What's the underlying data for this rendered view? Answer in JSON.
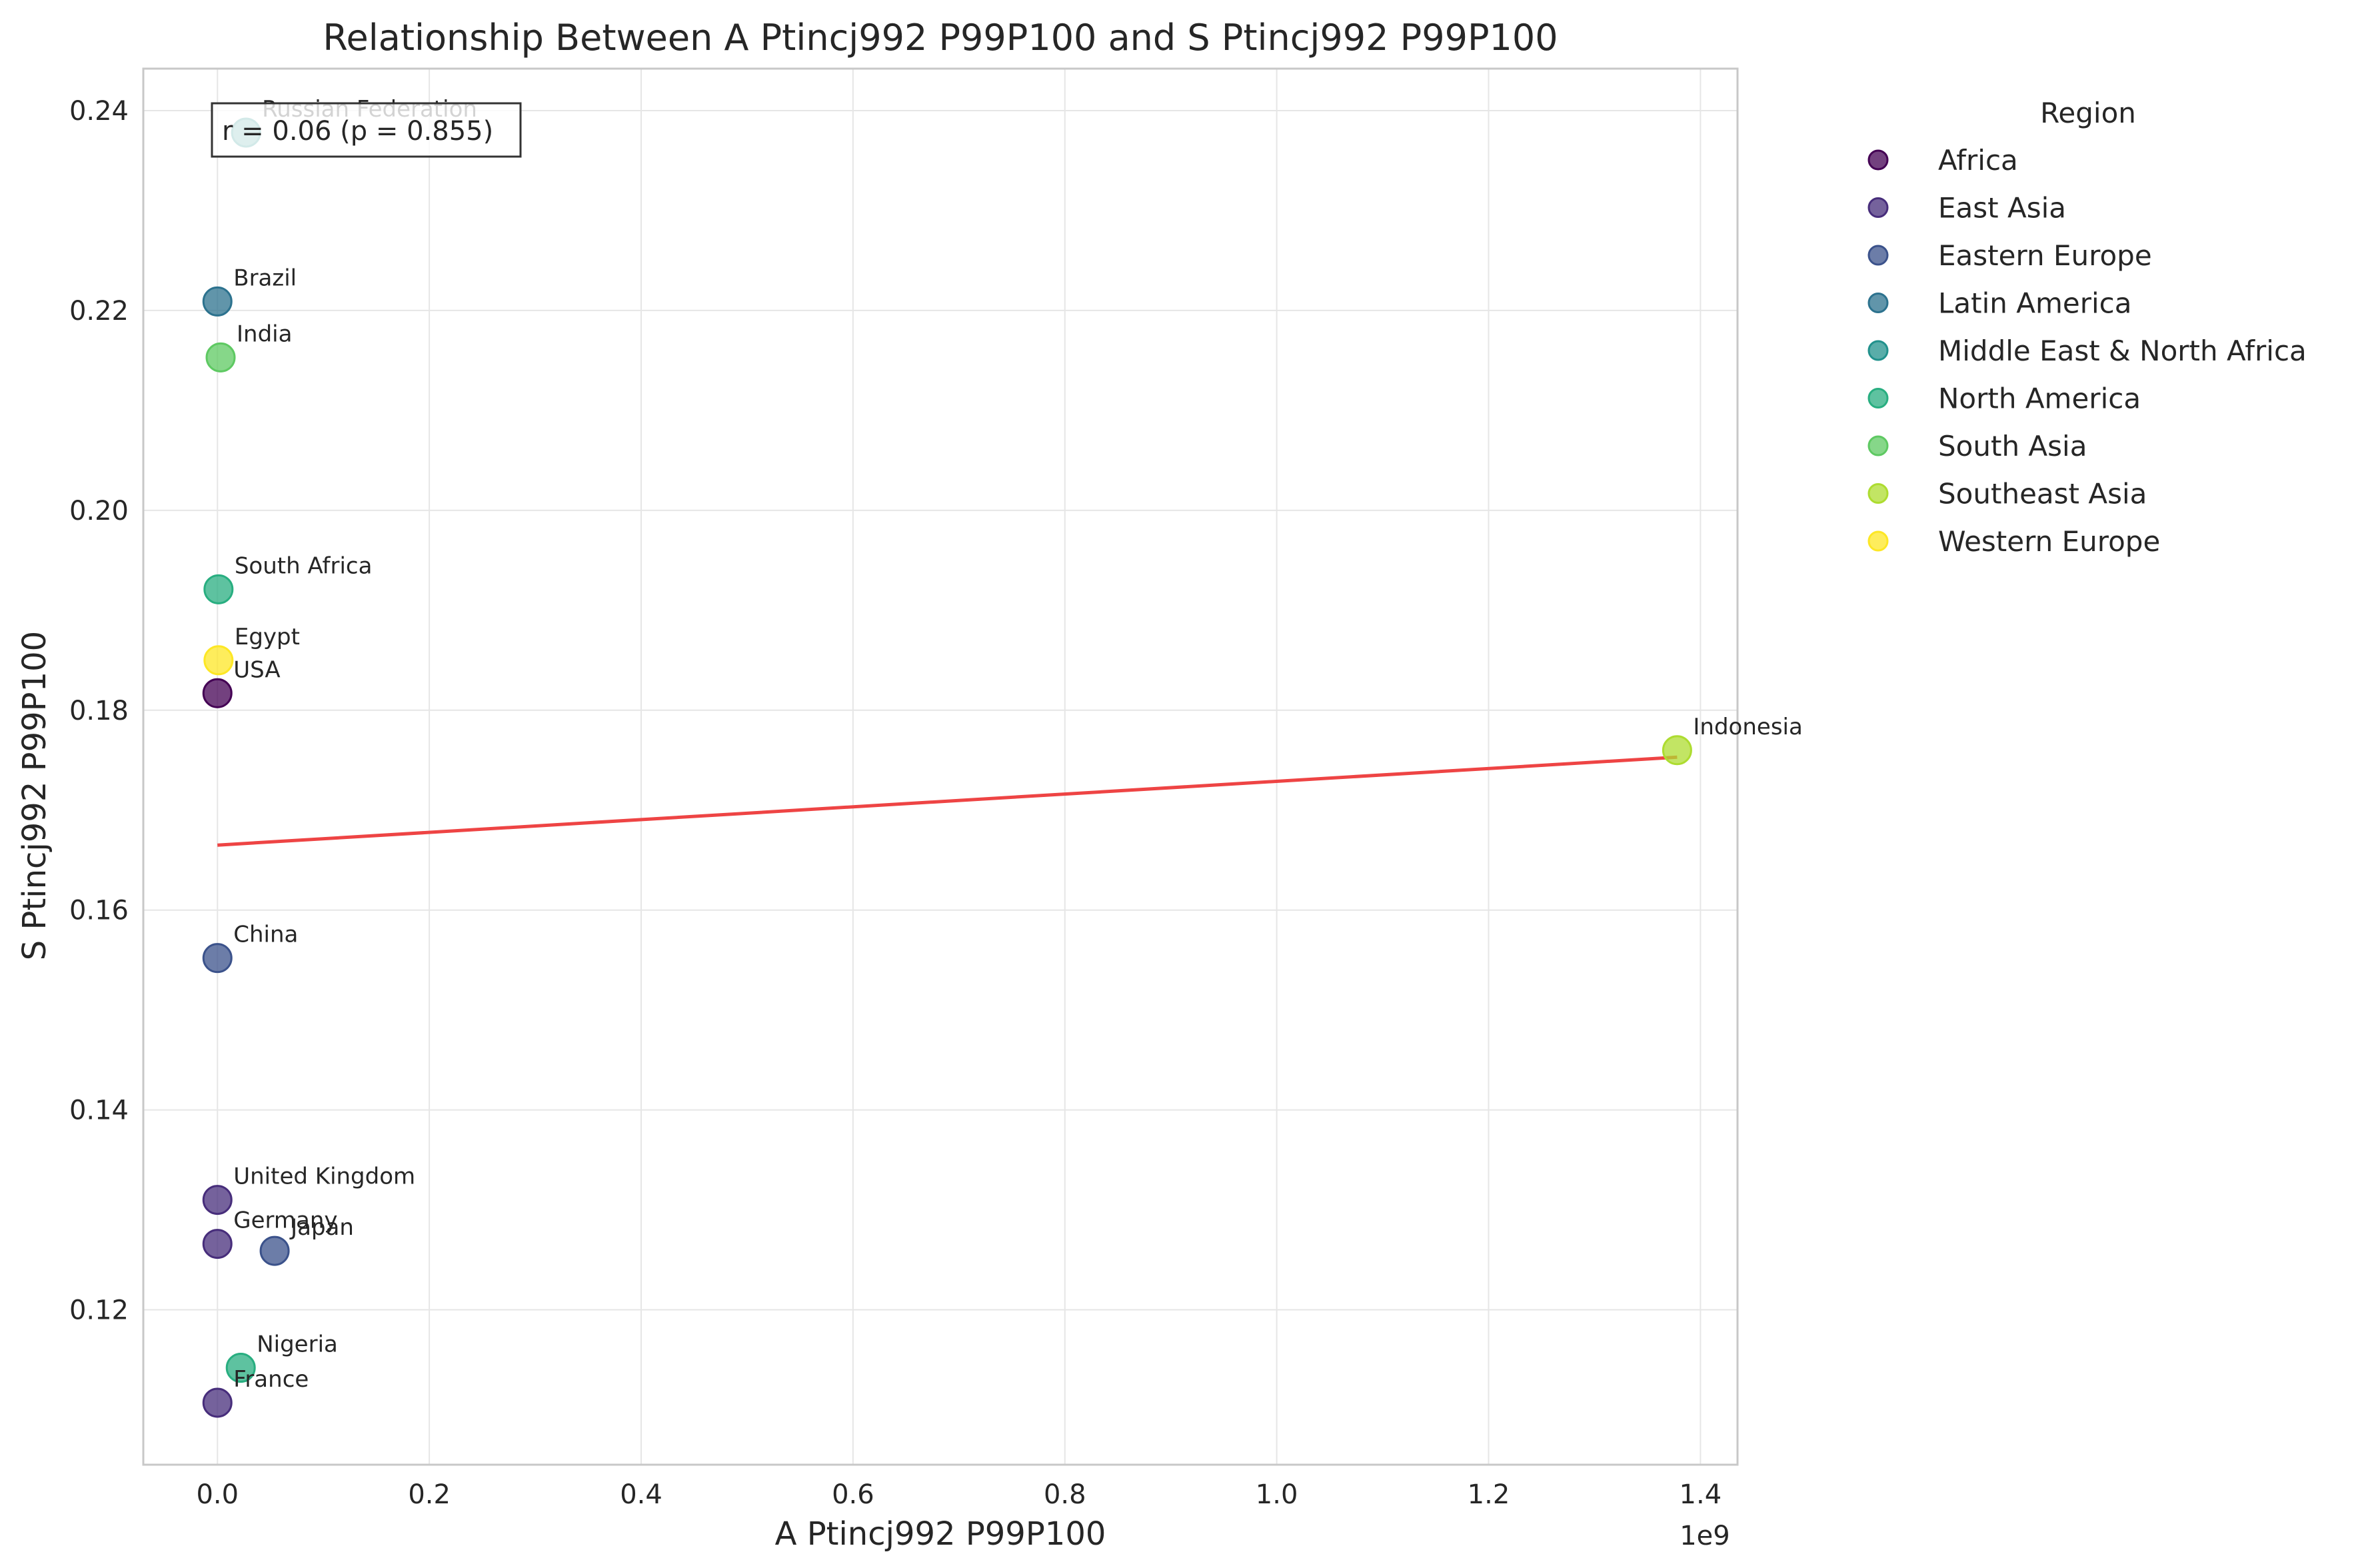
{
  "chart_data": {
    "type": "scatter",
    "title": "Relationship Between A Ptincj992 P99P100 and S Ptincj992 P99P100",
    "xlabel": "A Ptincj992 P99P100",
    "ylabel": "S Ptincj992 P99P100",
    "x_scale_note": "1e9",
    "xlim": [
      -0.07,
      1.435
    ],
    "ylim": [
      0.1045,
      0.2442
    ],
    "x_ticks": [
      0.0,
      0.2,
      0.4,
      0.6,
      0.8,
      1.0,
      1.2,
      1.4
    ],
    "x_tick_labels": [
      "0.0",
      "0.2",
      "0.4",
      "0.6",
      "0.8",
      "1.0",
      "1.2",
      "1.4"
    ],
    "y_ticks": [
      0.12,
      0.14,
      0.16,
      0.18,
      0.2,
      0.22,
      0.24
    ],
    "y_tick_labels": [
      "0.12",
      "0.14",
      "0.16",
      "0.18",
      "0.20",
      "0.22",
      "0.24"
    ],
    "grid": true,
    "legend": {
      "title": "Region",
      "placement": "outside-right",
      "entries": [
        {
          "name": "Africa",
          "color": "#440154"
        },
        {
          "name": "East Asia",
          "color": "#472d7b"
        },
        {
          "name": "Eastern Europe",
          "color": "#3b528b"
        },
        {
          "name": "Latin America",
          "color": "#2c728e"
        },
        {
          "name": "Middle East & North Africa",
          "color": "#21918c"
        },
        {
          "name": "North America",
          "color": "#28ae80"
        },
        {
          "name": "South Asia",
          "color": "#5ec962"
        },
        {
          "name": "Southeast Asia",
          "color": "#addc30"
        },
        {
          "name": "Western Europe",
          "color": "#fde725"
        }
      ]
    },
    "points": [
      {
        "label": "Russian Federation",
        "x": 0.027,
        "y": 0.2378,
        "color": "#21918c"
      },
      {
        "label": "Brazil",
        "x": 0.0,
        "y": 0.2209,
        "color": "#2c728e"
      },
      {
        "label": "India",
        "x": 0.003,
        "y": 0.2153,
        "color": "#5ec962"
      },
      {
        "label": "South Africa",
        "x": 0.001,
        "y": 0.1921,
        "color": "#28ae80"
      },
      {
        "label": "Egypt",
        "x": 0.001,
        "y": 0.185,
        "color": "#fde725"
      },
      {
        "label": "USA",
        "x": 0.0,
        "y": 0.1817,
        "color": "#440154"
      },
      {
        "label": "Indonesia",
        "x": 1.378,
        "y": 0.176,
        "color": "#addc30"
      },
      {
        "label": "China",
        "x": 0.0,
        "y": 0.1552,
        "color": "#3b528b"
      },
      {
        "label": "United Kingdom",
        "x": 0.0,
        "y": 0.131,
        "color": "#472d7b"
      },
      {
        "label": "Germany",
        "x": 0.0,
        "y": 0.1266,
        "color": "#472d7b"
      },
      {
        "label": "Japan",
        "x": 0.054,
        "y": 0.1259,
        "color": "#3b528b"
      },
      {
        "label": "Nigeria",
        "x": 0.022,
        "y": 0.1142,
        "color": "#28ae80"
      },
      {
        "label": "France",
        "x": 0.0,
        "y": 0.1107,
        "color": "#472d7b"
      }
    ],
    "trend_line": {
      "x": [
        0.0,
        1.378
      ],
      "y": [
        0.1665,
        0.1753
      ],
      "color": "#ee4444"
    },
    "annotation": {
      "text": "r = 0.06 (p = 0.855)"
    }
  }
}
